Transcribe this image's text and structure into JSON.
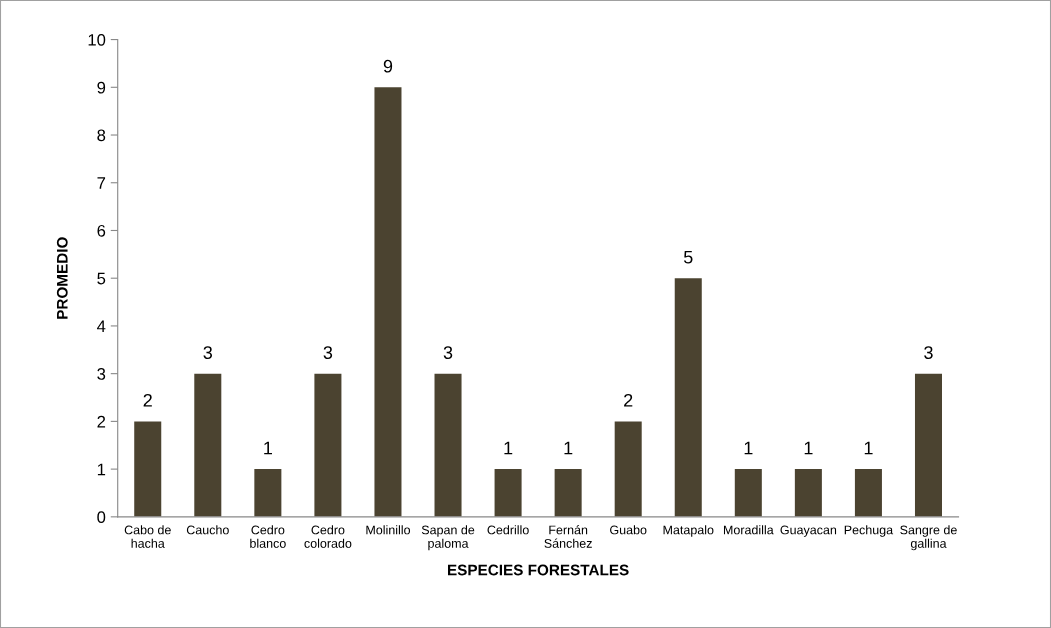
{
  "chart_data": {
    "type": "bar",
    "xlabel": "ESPECIES FORESTALES",
    "ylabel": "PROMEDIO",
    "categories": [
      "Cabo de hacha",
      "Caucho",
      "Cedro blanco",
      "Cedro colorado",
      "Molinillo",
      "Sapan de paloma",
      "Cedrillo",
      "Fernán Sánchez",
      "Guabo",
      "Matapalo",
      "Moradilla",
      "Guayacan",
      "Pechuga",
      "Sangre de gallina"
    ],
    "values": [
      2,
      3,
      1,
      3,
      9,
      3,
      1,
      1,
      2,
      5,
      1,
      1,
      1,
      3
    ],
    "color": "#4b4330",
    "ylim": [
      0,
      10
    ],
    "yticks": [
      0,
      1,
      2,
      3,
      4,
      5,
      6,
      7,
      8,
      9,
      10
    ],
    "grid": false,
    "data_labels": true
  }
}
